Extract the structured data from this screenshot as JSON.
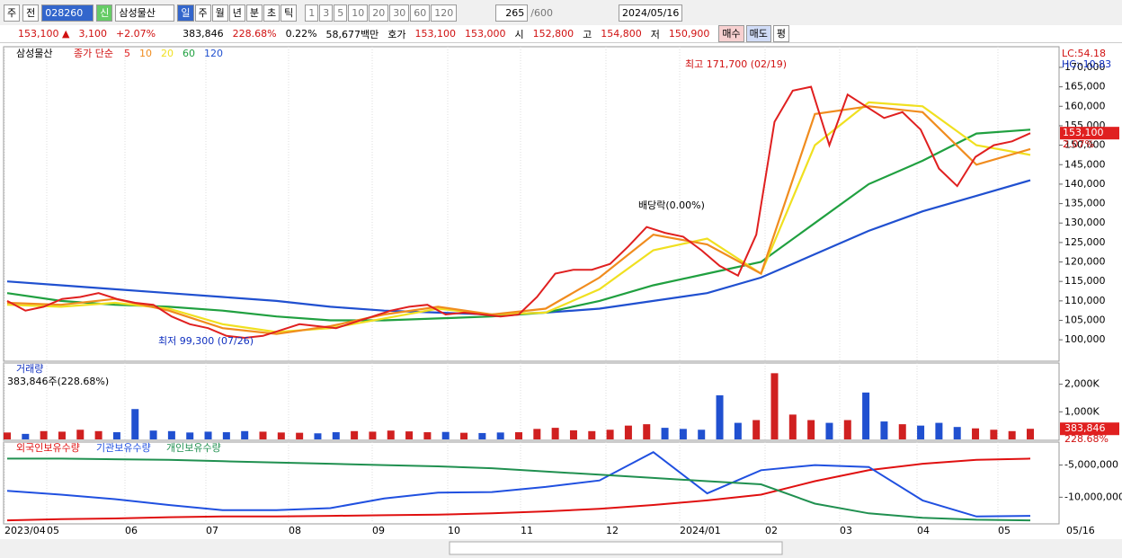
{
  "toolbar": {
    "mode": "주",
    "compare": "전",
    "code": "028260",
    "badge": "신",
    "name": "삼성물산",
    "period_buttons": [
      "일",
      "주",
      "월",
      "년",
      "분",
      "초",
      "틱"
    ],
    "interval_buttons": [
      "1",
      "3",
      "5",
      "10",
      "20",
      "30",
      "60",
      "120"
    ],
    "count": "265",
    "max": "/600",
    "date": "2024/05/16"
  },
  "quote": {
    "price": "153,100 ▲",
    "change": "3,100",
    "rate": "+2.07%",
    "volume": "383,846",
    "volume_rate": "228.68%",
    "turnover": "0.22%",
    "amount": "58,677백만",
    "ask_label": "호가",
    "ask": "153,100",
    "bid": "153,000",
    "open_label": "시",
    "open": "152,800",
    "high_label": "고",
    "high": "154,800",
    "low_label": "저",
    "low": "150,900",
    "buy": "매수",
    "sell": "매도",
    "avg": "평"
  },
  "price_panel": {
    "name": "삼성물산",
    "legend_label": "종가 단순",
    "lc": "LC:54.18",
    "hc": "HC:-10.83",
    "ylim": [
      94500,
      175300
    ],
    "yticks": [
      {
        "value": 100000,
        "label": "100,000"
      },
      {
        "value": 105000,
        "label": "105,000"
      },
      {
        "value": 110000,
        "label": "110,000"
      },
      {
        "value": 115000,
        "label": "115,000"
      },
      {
        "value": 120000,
        "label": "120,000"
      },
      {
        "value": 125000,
        "label": "125,000"
      },
      {
        "value": 130000,
        "label": "130,000"
      },
      {
        "value": 135000,
        "label": "135,000"
      },
      {
        "value": 140000,
        "label": "140,000"
      },
      {
        "value": 145000,
        "label": "145,000"
      },
      {
        "value": 150000,
        "label": "150,000"
      },
      {
        "value": 155000,
        "label": "155,000"
      },
      {
        "value": 160000,
        "label": "160,000"
      },
      {
        "value": 165000,
        "label": "165,000"
      },
      {
        "value": 170000,
        "label": "170,000"
      }
    ],
    "series": [
      {
        "name": "5",
        "color": "#e02020",
        "values": [
          110000,
          107500,
          108500,
          110500,
          111000,
          112000,
          110500,
          109500,
          109000,
          106000,
          104000,
          103000,
          101000,
          100500,
          101000,
          102500,
          104000,
          103500,
          103000,
          104500,
          106000,
          107500,
          108500,
          109000,
          106500,
          107000,
          106500,
          106000,
          106500,
          111000,
          117000,
          118000,
          118000,
          119500,
          124000,
          129000,
          127500,
          126500,
          123000,
          119000,
          116500,
          127000,
          156000,
          164000,
          165000,
          150000,
          163000,
          160000,
          157000,
          158500,
          154000,
          144000,
          139500,
          147000,
          150000,
          151000,
          153100
        ]
      },
      {
        "name": "10",
        "color": "#f08c1e",
        "values": [
          109500,
          109000,
          110500,
          107500,
          103000,
          101500,
          103500,
          106500,
          108500,
          106500,
          108000,
          116000,
          127000,
          124500,
          117000,
          158000,
          160000,
          158500,
          145000,
          149000
        ]
      },
      {
        "name": "20",
        "color": "#f0e020",
        "values": [
          109000,
          108500,
          109500,
          108000,
          104000,
          102000,
          103000,
          105500,
          108000,
          106500,
          107000,
          113000,
          123000,
          126000,
          117000,
          150000,
          161000,
          160000,
          150000,
          147500
        ]
      },
      {
        "name": "60",
        "color": "#20a040",
        "values": [
          112000,
          110000,
          109000,
          108500,
          107500,
          106000,
          105000,
          105000,
          105500,
          106000,
          107000,
          110000,
          114000,
          117000,
          120000,
          130000,
          140000,
          146000,
          153000,
          154000
        ]
      },
      {
        "name": "120",
        "color": "#2050d0",
        "values": [
          115000,
          114000,
          113000,
          112000,
          111000,
          110000,
          108500,
          107500,
          107000,
          106500,
          107000,
          108000,
          110000,
          112000,
          116000,
          122000,
          128000,
          133000,
          137000,
          141000
        ]
      }
    ],
    "last_price": "153,100",
    "last_rate": "2.07%",
    "annotations": {
      "high": "최고 171,700 (02/19)",
      "low": "최저 99,300 (07/26)",
      "dividend": "배당락(0.00%)"
    }
  },
  "volume_panel": {
    "title": "거래량",
    "summary": "383,846주(228.68%)",
    "ylim": [
      0,
      2770
    ],
    "yticks": [
      {
        "value": 1000,
        "label": "1,000K"
      },
      {
        "value": 2000,
        "label": "2,000K"
      }
    ],
    "values": [
      250,
      200,
      300,
      280,
      350,
      300,
      260,
      1100,
      320,
      300,
      250,
      280,
      260,
      300,
      280,
      250,
      240,
      220,
      260,
      300,
      280,
      320,
      290,
      260,
      270,
      240,
      230,
      250,
      260,
      380,
      420,
      330,
      300,
      350,
      500,
      550,
      420,
      380,
      350,
      1600,
      600,
      700,
      2400,
      900,
      700,
      600,
      700,
      1700,
      650,
      550,
      500,
      600,
      450,
      400,
      350,
      300,
      384
    ],
    "last": "383,846",
    "last_rate": "228.68%"
  },
  "holdings_panel": {
    "ylim": [
      -14140000,
      -1430000
    ],
    "yticks": [
      {
        "value": -5000000,
        "label": "-5,000,000"
      },
      {
        "value": -10000000,
        "label": "-10,000,000"
      }
    ],
    "series": [
      {
        "name": "외국인보유수량",
        "color": "#e01010",
        "values": [
          -13600000,
          -13400000,
          -13300000,
          -13100000,
          -13000000,
          -13000000,
          -12900000,
          -12800000,
          -12700000,
          -12500000,
          -12200000,
          -11800000,
          -11200000,
          -10500000,
          -9600000,
          -7500000,
          -5800000,
          -4800000,
          -4200000,
          -4000000
        ]
      },
      {
        "name": "기관보유수량",
        "color": "#2050e0",
        "values": [
          -9000000,
          -9600000,
          -10300000,
          -11200000,
          -12000000,
          -12000000,
          -11700000,
          -10200000,
          -9300000,
          -9200000,
          -8400000,
          -7400000,
          -3000000,
          -9400000,
          -5800000,
          -5000000,
          -5300000,
          -10500000,
          -13000000,
          -12900000
        ]
      },
      {
        "name": "개인보유수량",
        "color": "#209050",
        "values": [
          -4000000,
          -4000000,
          -4100000,
          -4200000,
          -4400000,
          -4600000,
          -4800000,
          -5000000,
          -5200000,
          -5500000,
          -6000000,
          -6500000,
          -7000000,
          -7500000,
          -8000000,
          -11000000,
          -12500000,
          -13200000,
          -13500000,
          -13600000
        ]
      }
    ]
  },
  "x_axis": {
    "labels": [
      "2023/04",
      "05",
      "06",
      "07",
      "08",
      "09",
      "10",
      "11",
      "12",
      "2024/01",
      "02",
      "03",
      "04",
      "05"
    ],
    "end": "05/16"
  }
}
